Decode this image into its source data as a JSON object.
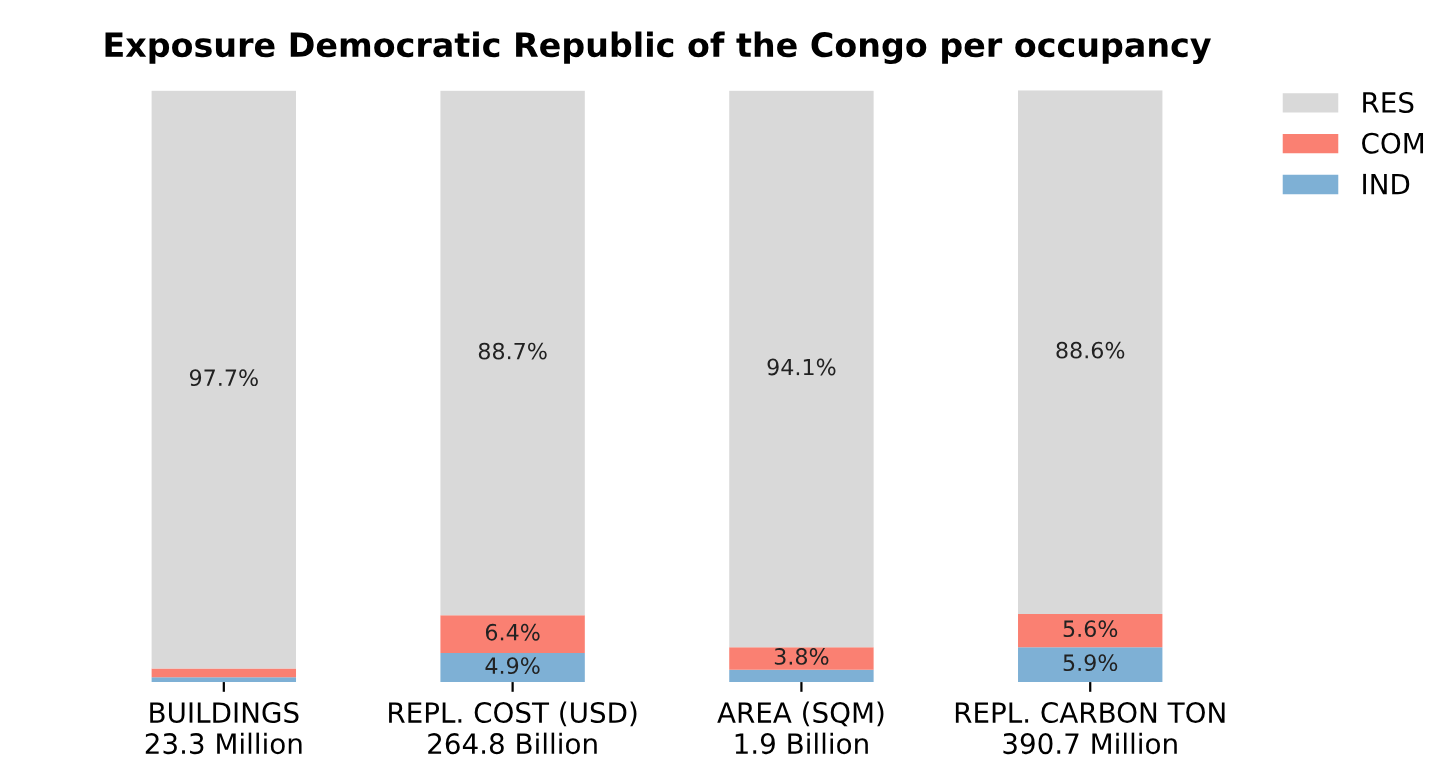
{
  "chart_data": {
    "type": "bar",
    "title": "Exposure Democratic Republic of the Congo per occupancy",
    "categories": [
      "BUILDINGS\n23.3 Million",
      "REPL. COST (USD)\n264.8 Billion",
      "AREA (SQM)\n1.9 Billion",
      "REPL. CARBON TON\n390.7 Million"
    ],
    "stacked": true,
    "legend": "top right",
    "grid": false,
    "series": [
      {
        "name": "IND",
        "color": "#7eb0d5",
        "values": [
          0.8,
          4.9,
          2.1,
          5.9
        ],
        "value_labels": [
          null,
          "4.9%",
          null,
          "5.9%"
        ]
      },
      {
        "name": "COM",
        "color": "#fa8072",
        "values": [
          1.5,
          6.4,
          3.8,
          5.6
        ],
        "value_labels": [
          null,
          "6.4%",
          "3.8%",
          "5.6%"
        ]
      },
      {
        "name": "RES",
        "color": "#d9d9d9",
        "values": [
          97.7,
          88.7,
          94.1,
          88.6
        ],
        "value_labels": [
          "97.7%",
          "88.7%",
          "94.1%",
          "88.6%"
        ]
      }
    ]
  }
}
